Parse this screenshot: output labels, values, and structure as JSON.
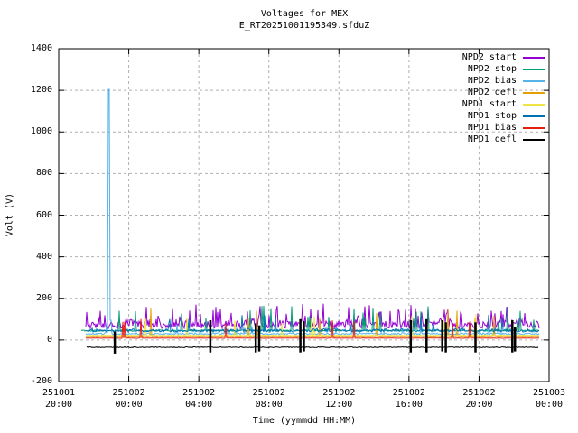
{
  "page": {
    "background": "#ffffff"
  },
  "chart_data": {
    "type": "line",
    "title": "Voltages for MEX",
    "subtitle": "E_RT20251001195349.sfduZ",
    "xlabel": "Time (yymmdd HH:MM)",
    "ylabel": "Volt (V)",
    "ylim": [
      -200,
      1400
    ],
    "yticks": [
      -200,
      0,
      200,
      400,
      600,
      800,
      1000,
      1200,
      1400
    ],
    "x_range_hours": [
      0,
      28
    ],
    "xticks": [
      {
        "date": "251001",
        "time": "20:00"
      },
      {
        "date": "251002",
        "time": "00:00"
      },
      {
        "date": "251002",
        "time": "04:00"
      },
      {
        "date": "251002",
        "time": "08:00"
      },
      {
        "date": "251002",
        "time": "12:00"
      },
      {
        "date": "251002",
        "time": "16:00"
      },
      {
        "date": "251002",
        "time": "20:00"
      },
      {
        "date": "251003",
        "time": "00:00"
      }
    ],
    "grid": true,
    "legend_position": "top-right",
    "colors": {
      "frame": "#000000",
      "grid": "#b0b0b0",
      "text": "#000000"
    },
    "series": [
      {
        "name": "NPD2 start",
        "color": "#9400d3",
        "t_range": [
          1.55,
          27.45
        ],
        "band": [
          55,
          105
        ],
        "spikes": {
          "count": 60,
          "min": 110,
          "max": 175
        }
      },
      {
        "name": "NPD2 stop",
        "color": "#009e73",
        "t_range": [
          1.3,
          27.45
        ],
        "baseline": 45,
        "jitter": 3,
        "spikes": {
          "count": 26,
          "min": 90,
          "max": 165
        }
      },
      {
        "name": "NPD2 bias",
        "color": "#56b4e9",
        "t_range": [
          1.55,
          27.45
        ],
        "band": [
          26,
          36
        ],
        "spikes": {
          "count": 10,
          "min": 55,
          "max": 90
        },
        "events": [
          {
            "t": 2.83,
            "v": 1205
          },
          {
            "t": 2.95,
            "v": 95
          }
        ]
      },
      {
        "name": "NPD2 defl",
        "color": "#e69f00",
        "t_range": [
          1.55,
          27.45
        ],
        "baseline": 16,
        "jitter": 1,
        "spikes": {
          "count": 9,
          "min": 90,
          "max": 155
        }
      },
      {
        "name": "NPD1 start",
        "color": "#f0e442",
        "t_range": [
          1.55,
          27.45
        ],
        "baseline": 22,
        "jitter": 1.5,
        "spikes": {
          "count": 9,
          "min": 75,
          "max": 125
        }
      },
      {
        "name": "NPD1 stop",
        "color": "#0072b2",
        "t_range": [
          1.55,
          27.45
        ],
        "band": [
          38,
          58
        ],
        "spikes": {
          "count": 12,
          "min": 70,
          "max": 130
        }
      },
      {
        "name": "NPD1 bias",
        "color": "#e51e10",
        "t_range": [
          1.55,
          27.45
        ],
        "baseline": 9,
        "jitter": 1,
        "spikes": {
          "count": 8,
          "min": 75,
          "max": 105
        }
      },
      {
        "name": "NPD1 defl",
        "color": "#000000",
        "t_range": [
          1.6,
          27.4
        ],
        "baseline": -35,
        "jitter": 2,
        "bars": [
          {
            "t": 3.2,
            "top": 40,
            "bottom": -65
          },
          {
            "t": 8.66,
            "top": 95,
            "bottom": -60
          },
          {
            "t": 11.25,
            "top": 80,
            "bottom": -60
          },
          {
            "t": 11.45,
            "top": 70,
            "bottom": -55
          },
          {
            "t": 13.8,
            "top": 100,
            "bottom": -60
          },
          {
            "t": 14.0,
            "top": 90,
            "bottom": -55
          },
          {
            "t": 20.1,
            "top": 95,
            "bottom": -60
          },
          {
            "t": 21.0,
            "top": 100,
            "bottom": -60
          },
          {
            "t": 21.9,
            "top": 95,
            "bottom": -55
          },
          {
            "t": 22.1,
            "top": 85,
            "bottom": -60
          },
          {
            "t": 23.8,
            "top": 85,
            "bottom": -60
          },
          {
            "t": 25.9,
            "top": 95,
            "bottom": -60
          },
          {
            "t": 26.05,
            "top": 60,
            "bottom": -55
          }
        ]
      }
    ]
  }
}
